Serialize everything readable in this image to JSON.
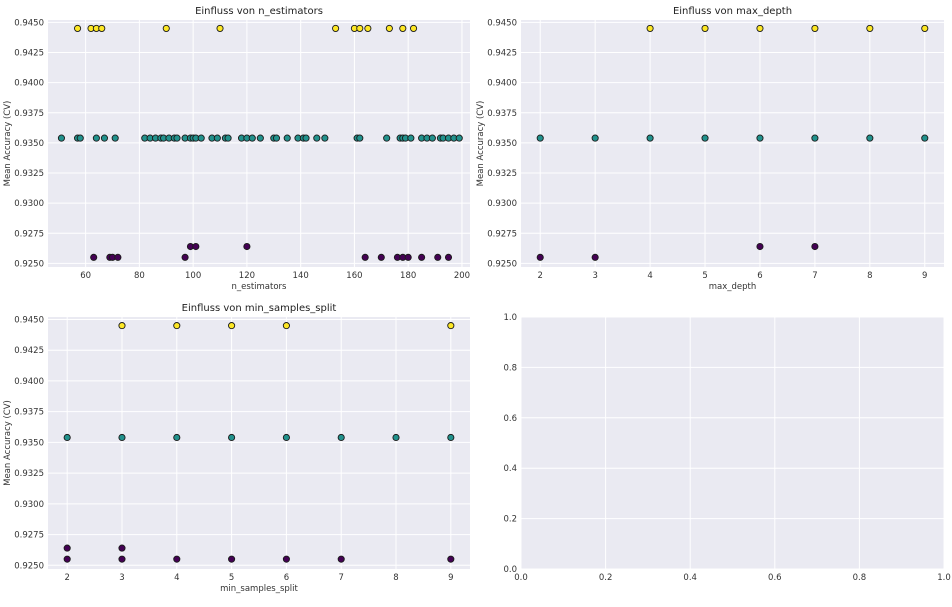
{
  "chart_data": [
    {
      "type": "scatter",
      "title": "Einfluss von n_estimators",
      "xlabel": "n_estimators",
      "ylabel": "Mean Accuracy (CV)",
      "xlim": [
        46,
        203
      ],
      "ylim": [
        0.9247,
        0.9452
      ],
      "xticks": [
        60,
        80,
        100,
        120,
        140,
        160,
        180,
        200
      ],
      "yticks": [
        0.925,
        0.9275,
        0.93,
        0.9325,
        0.935,
        0.9375,
        0.94,
        0.9425,
        0.945
      ],
      "ytick_labels": [
        "0.9250",
        "0.9275",
        "0.9300",
        "0.9325",
        "0.9350",
        "0.9375",
        "0.9400",
        "0.9425",
        "0.9450"
      ],
      "grid": true,
      "colormap": "viridis",
      "points": [
        {
          "x": 57,
          "y": 0.9445
        },
        {
          "x": 62,
          "y": 0.9445
        },
        {
          "x": 64,
          "y": 0.9445
        },
        {
          "x": 66,
          "y": 0.9445
        },
        {
          "x": 90,
          "y": 0.9445
        },
        {
          "x": 110,
          "y": 0.9445
        },
        {
          "x": 153,
          "y": 0.9445
        },
        {
          "x": 160,
          "y": 0.9445
        },
        {
          "x": 162,
          "y": 0.9445
        },
        {
          "x": 165,
          "y": 0.9445
        },
        {
          "x": 173,
          "y": 0.9445
        },
        {
          "x": 178,
          "y": 0.9445
        },
        {
          "x": 182,
          "y": 0.9445
        },
        {
          "x": 51,
          "y": 0.9354
        },
        {
          "x": 57,
          "y": 0.9354
        },
        {
          "x": 58,
          "y": 0.9354
        },
        {
          "x": 64,
          "y": 0.9354
        },
        {
          "x": 67,
          "y": 0.9354
        },
        {
          "x": 71,
          "y": 0.9354
        },
        {
          "x": 82,
          "y": 0.9354
        },
        {
          "x": 84,
          "y": 0.9354
        },
        {
          "x": 86,
          "y": 0.9354
        },
        {
          "x": 88,
          "y": 0.9354
        },
        {
          "x": 89,
          "y": 0.9354
        },
        {
          "x": 91,
          "y": 0.9354
        },
        {
          "x": 93,
          "y": 0.9354
        },
        {
          "x": 94,
          "y": 0.9354
        },
        {
          "x": 97,
          "y": 0.9354
        },
        {
          "x": 99,
          "y": 0.9354
        },
        {
          "x": 100,
          "y": 0.9354
        },
        {
          "x": 101,
          "y": 0.9354
        },
        {
          "x": 103,
          "y": 0.9354
        },
        {
          "x": 107,
          "y": 0.9354
        },
        {
          "x": 109,
          "y": 0.9354
        },
        {
          "x": 112,
          "y": 0.9354
        },
        {
          "x": 113,
          "y": 0.9354
        },
        {
          "x": 118,
          "y": 0.9354
        },
        {
          "x": 120,
          "y": 0.9354
        },
        {
          "x": 122,
          "y": 0.9354
        },
        {
          "x": 125,
          "y": 0.9354
        },
        {
          "x": 130,
          "y": 0.9354
        },
        {
          "x": 131,
          "y": 0.9354
        },
        {
          "x": 135,
          "y": 0.9354
        },
        {
          "x": 139,
          "y": 0.9354
        },
        {
          "x": 141,
          "y": 0.9354
        },
        {
          "x": 142,
          "y": 0.9354
        },
        {
          "x": 146,
          "y": 0.9354
        },
        {
          "x": 149,
          "y": 0.9354
        },
        {
          "x": 161,
          "y": 0.9354
        },
        {
          "x": 162,
          "y": 0.9354
        },
        {
          "x": 172,
          "y": 0.9354
        },
        {
          "x": 177,
          "y": 0.9354
        },
        {
          "x": 178,
          "y": 0.9354
        },
        {
          "x": 179,
          "y": 0.9354
        },
        {
          "x": 181,
          "y": 0.9354
        },
        {
          "x": 185,
          "y": 0.9354
        },
        {
          "x": 187,
          "y": 0.9354
        },
        {
          "x": 189,
          "y": 0.9354
        },
        {
          "x": 192,
          "y": 0.9354
        },
        {
          "x": 193,
          "y": 0.9354
        },
        {
          "x": 195,
          "y": 0.9354
        },
        {
          "x": 197,
          "y": 0.9354
        },
        {
          "x": 199,
          "y": 0.9354
        },
        {
          "x": 99,
          "y": 0.9264
        },
        {
          "x": 101,
          "y": 0.9264
        },
        {
          "x": 120,
          "y": 0.9264
        },
        {
          "x": 63,
          "y": 0.9255
        },
        {
          "x": 69,
          "y": 0.9255
        },
        {
          "x": 70,
          "y": 0.9255
        },
        {
          "x": 72,
          "y": 0.9255
        },
        {
          "x": 97,
          "y": 0.9255
        },
        {
          "x": 164,
          "y": 0.9255
        },
        {
          "x": 170,
          "y": 0.9255
        },
        {
          "x": 176,
          "y": 0.9255
        },
        {
          "x": 178,
          "y": 0.9255
        },
        {
          "x": 180,
          "y": 0.9255
        },
        {
          "x": 185,
          "y": 0.9255
        },
        {
          "x": 191,
          "y": 0.9255
        },
        {
          "x": 195,
          "y": 0.9255
        }
      ]
    },
    {
      "type": "scatter",
      "title": "Einfluss von max_depth",
      "xlabel": "max_depth",
      "ylabel": "Mean Accuracy (CV)",
      "xlim": [
        1.65,
        9.35
      ],
      "ylim": [
        0.9247,
        0.9452
      ],
      "xticks": [
        2,
        3,
        4,
        5,
        6,
        7,
        8,
        9
      ],
      "yticks": [
        0.925,
        0.9275,
        0.93,
        0.9325,
        0.935,
        0.9375,
        0.94,
        0.9425,
        0.945
      ],
      "ytick_labels": [
        "0.9250",
        "0.9275",
        "0.9300",
        "0.9325",
        "0.9350",
        "0.9375",
        "0.9400",
        "0.9425",
        "0.9450"
      ],
      "grid": true,
      "colormap": "viridis",
      "points": [
        {
          "x": 4,
          "y": 0.9445
        },
        {
          "x": 5,
          "y": 0.9445
        },
        {
          "x": 6,
          "y": 0.9445
        },
        {
          "x": 7,
          "y": 0.9445
        },
        {
          "x": 8,
          "y": 0.9445
        },
        {
          "x": 9,
          "y": 0.9445
        },
        {
          "x": 2,
          "y": 0.9354
        },
        {
          "x": 3,
          "y": 0.9354
        },
        {
          "x": 4,
          "y": 0.9354
        },
        {
          "x": 5,
          "y": 0.9354
        },
        {
          "x": 6,
          "y": 0.9354
        },
        {
          "x": 7,
          "y": 0.9354
        },
        {
          "x": 8,
          "y": 0.9354
        },
        {
          "x": 9,
          "y": 0.9354
        },
        {
          "x": 6,
          "y": 0.9264
        },
        {
          "x": 7,
          "y": 0.9264
        },
        {
          "x": 2,
          "y": 0.9255
        },
        {
          "x": 3,
          "y": 0.9255
        }
      ]
    },
    {
      "type": "scatter",
      "title": "Einfluss von min_samples_split",
      "xlabel": "min_samples_split",
      "ylabel": "Mean Accuracy (CV)",
      "xlim": [
        1.65,
        9.35
      ],
      "ylim": [
        0.9247,
        0.9452
      ],
      "xticks": [
        2,
        3,
        4,
        5,
        6,
        7,
        8,
        9
      ],
      "yticks": [
        0.925,
        0.9275,
        0.93,
        0.9325,
        0.935,
        0.9375,
        0.94,
        0.9425,
        0.945
      ],
      "ytick_labels": [
        "0.9250",
        "0.9275",
        "0.9300",
        "0.9325",
        "0.9350",
        "0.9375",
        "0.9400",
        "0.9425",
        "0.9450"
      ],
      "grid": true,
      "colormap": "viridis",
      "points": [
        {
          "x": 3,
          "y": 0.9445
        },
        {
          "x": 4,
          "y": 0.9445
        },
        {
          "x": 5,
          "y": 0.9445
        },
        {
          "x": 6,
          "y": 0.9445
        },
        {
          "x": 9,
          "y": 0.9445
        },
        {
          "x": 2,
          "y": 0.9354
        },
        {
          "x": 3,
          "y": 0.9354
        },
        {
          "x": 4,
          "y": 0.9354
        },
        {
          "x": 5,
          "y": 0.9354
        },
        {
          "x": 6,
          "y": 0.9354
        },
        {
          "x": 7,
          "y": 0.9354
        },
        {
          "x": 8,
          "y": 0.9354
        },
        {
          "x": 9,
          "y": 0.9354
        },
        {
          "x": 2,
          "y": 0.9264
        },
        {
          "x": 3,
          "y": 0.9264
        },
        {
          "x": 2,
          "y": 0.9255
        },
        {
          "x": 3,
          "y": 0.9255
        },
        {
          "x": 4,
          "y": 0.9255
        },
        {
          "x": 5,
          "y": 0.9255
        },
        {
          "x": 6,
          "y": 0.9255
        },
        {
          "x": 7,
          "y": 0.9255
        },
        {
          "x": 9,
          "y": 0.9255
        }
      ]
    },
    {
      "type": "scatter",
      "title": "",
      "xlabel": "",
      "ylabel": "",
      "xlim": [
        0,
        1
      ],
      "ylim": [
        0,
        1
      ],
      "xticks": [
        0,
        0.2,
        0.4,
        0.6,
        0.8,
        1
      ],
      "xtick_labels": [
        "0.0",
        "0.2",
        "0.4",
        "0.6",
        "0.8",
        "1.0"
      ],
      "yticks": [
        0,
        0.2,
        0.4,
        0.6,
        0.8,
        1
      ],
      "ytick_labels": [
        "0.0",
        "0.2",
        "0.4",
        "0.6",
        "0.8",
        "1.0"
      ],
      "grid": true,
      "points": []
    }
  ]
}
